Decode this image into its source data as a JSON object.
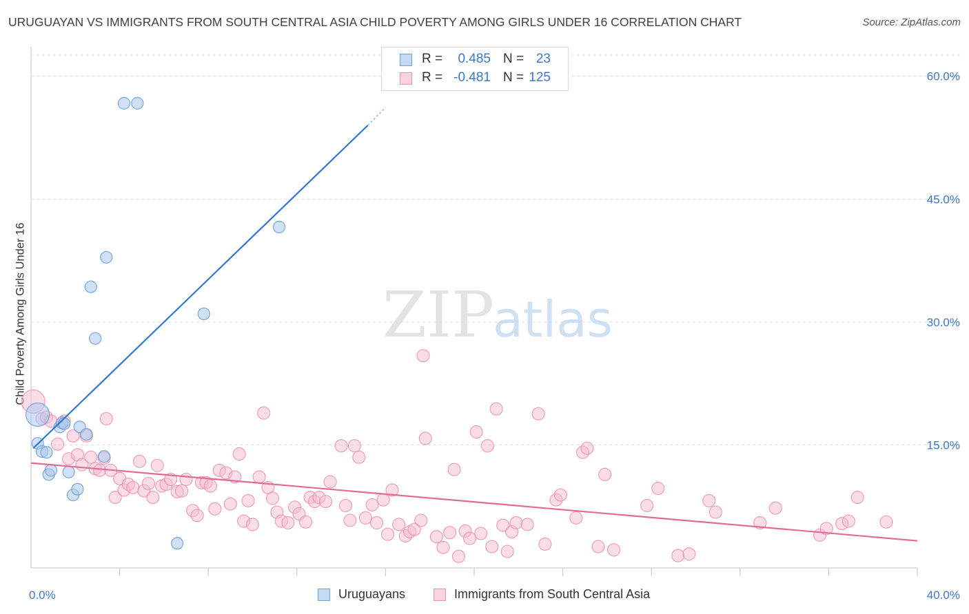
{
  "header": {
    "title": "URUGUAYAN VS IMMIGRANTS FROM SOUTH CENTRAL ASIA CHILD POVERTY AMONG GIRLS UNDER 16 CORRELATION CHART",
    "source": "Source: ZipAtlas.com"
  },
  "watermark": {
    "zip": "ZIP",
    "atlas": "atlas"
  },
  "legend_top": {
    "r_label": "R =",
    "n_label": "N =",
    "series": [
      {
        "r": "0.485",
        "n": "23"
      },
      {
        "r": "-0.481",
        "n": "125"
      }
    ]
  },
  "legend_bottom": {
    "items": [
      "Uruguayans",
      "Immigrants from South Central Asia"
    ]
  },
  "colors": {
    "blue_fill": "#a9c8ec",
    "blue_stroke": "#6b9fd8",
    "blue_line": "#2f77d0",
    "pink_fill": "#f6bcd0",
    "pink_stroke": "#ec8fb0",
    "pink_line": "#e46a96",
    "value_text": "#3a78c9"
  },
  "chart_data": {
    "type": "scatter",
    "title": "URUGUAYAN VS IMMIGRANTS FROM SOUTH CENTRAL ASIA CHILD POVERTY AMONG GIRLS UNDER 16 CORRELATION CHART",
    "xlabel": "",
    "ylabel": "Child Poverty Among Girls Under 16",
    "xlim": [
      0,
      40
    ],
    "ylim": [
      0,
      63
    ],
    "x_tick_labels": [
      "0.0%",
      "40.0%"
    ],
    "y_ticks": [
      15,
      30,
      45,
      60
    ],
    "y_tick_labels": [
      "15.0%",
      "30.0%",
      "45.0%",
      "60.0%"
    ],
    "grid": true,
    "series": [
      {
        "name": "Uruguayans",
        "r": 0.485,
        "n": 23,
        "trend": {
          "x": [
            0.1,
            15.2
          ],
          "y": [
            14.6,
            54.0
          ],
          "dashed_to": [
            16.0,
            56.2
          ]
        },
        "points": [
          {
            "x": 0.3,
            "y": 18.7,
            "big": true
          },
          {
            "x": 0.3,
            "y": 15.2
          },
          {
            "x": 0.5,
            "y": 14.2
          },
          {
            "x": 0.7,
            "y": 14.1
          },
          {
            "x": 0.8,
            "y": 11.4
          },
          {
            "x": 0.9,
            "y": 11.9
          },
          {
            "x": 1.3,
            "y": 17.2
          },
          {
            "x": 1.4,
            "y": 17.7
          },
          {
            "x": 1.5,
            "y": 17.6
          },
          {
            "x": 1.7,
            "y": 11.7
          },
          {
            "x": 1.9,
            "y": 8.9
          },
          {
            "x": 2.1,
            "y": 9.6
          },
          {
            "x": 2.2,
            "y": 17.2
          },
          {
            "x": 2.5,
            "y": 16.3
          },
          {
            "x": 2.7,
            "y": 34.3
          },
          {
            "x": 2.9,
            "y": 28.0
          },
          {
            "x": 3.3,
            "y": 13.6
          },
          {
            "x": 3.4,
            "y": 37.9
          },
          {
            "x": 4.2,
            "y": 56.7
          },
          {
            "x": 4.8,
            "y": 56.7
          },
          {
            "x": 6.6,
            "y": 3.0
          },
          {
            "x": 7.8,
            "y": 31.0
          },
          {
            "x": 11.2,
            "y": 41.6
          }
        ]
      },
      {
        "name": "Immigrants from South Central Asia",
        "r": -0.481,
        "n": 125,
        "trend": {
          "x": [
            0,
            40
          ],
          "y": [
            12.8,
            3.3
          ]
        },
        "points": [
          {
            "x": 0.1,
            "y": 20.3,
            "big": true
          },
          {
            "x": 0.5,
            "y": 18.2
          },
          {
            "x": 0.7,
            "y": 18.4
          },
          {
            "x": 0.9,
            "y": 17.9
          },
          {
            "x": 1.2,
            "y": 15.1
          },
          {
            "x": 1.5,
            "y": 17.9
          },
          {
            "x": 1.7,
            "y": 13.3
          },
          {
            "x": 1.9,
            "y": 16.1
          },
          {
            "x": 2.1,
            "y": 13.8
          },
          {
            "x": 2.3,
            "y": 12.6
          },
          {
            "x": 2.5,
            "y": 16.1
          },
          {
            "x": 2.7,
            "y": 13.5
          },
          {
            "x": 2.9,
            "y": 12.1
          },
          {
            "x": 3.1,
            "y": 11.9
          },
          {
            "x": 3.3,
            "y": 13.4
          },
          {
            "x": 3.4,
            "y": 18.2
          },
          {
            "x": 3.6,
            "y": 11.9
          },
          {
            "x": 3.8,
            "y": 8.6
          },
          {
            "x": 4.0,
            "y": 10.9
          },
          {
            "x": 4.2,
            "y": 9.5
          },
          {
            "x": 4.4,
            "y": 10.2
          },
          {
            "x": 4.6,
            "y": 9.8
          },
          {
            "x": 4.9,
            "y": 13.0
          },
          {
            "x": 5.1,
            "y": 9.4
          },
          {
            "x": 5.3,
            "y": 10.3
          },
          {
            "x": 5.5,
            "y": 8.6
          },
          {
            "x": 5.7,
            "y": 12.5
          },
          {
            "x": 5.9,
            "y": 10.0
          },
          {
            "x": 6.1,
            "y": 10.2
          },
          {
            "x": 6.3,
            "y": 10.8
          },
          {
            "x": 6.6,
            "y": 9.3
          },
          {
            "x": 6.8,
            "y": 9.4
          },
          {
            "x": 7.0,
            "y": 10.8
          },
          {
            "x": 7.3,
            "y": 7.0
          },
          {
            "x": 7.5,
            "y": 6.4
          },
          {
            "x": 7.7,
            "y": 10.4
          },
          {
            "x": 7.9,
            "y": 10.4
          },
          {
            "x": 8.1,
            "y": 10.0
          },
          {
            "x": 8.3,
            "y": 7.2
          },
          {
            "x": 8.5,
            "y": 11.9
          },
          {
            "x": 8.8,
            "y": 11.6
          },
          {
            "x": 9.0,
            "y": 7.8
          },
          {
            "x": 9.2,
            "y": 11.1
          },
          {
            "x": 9.4,
            "y": 13.9
          },
          {
            "x": 9.6,
            "y": 5.7
          },
          {
            "x": 9.8,
            "y": 8.2
          },
          {
            "x": 10.0,
            "y": 5.3
          },
          {
            "x": 10.3,
            "y": 11.1
          },
          {
            "x": 10.5,
            "y": 18.9
          },
          {
            "x": 10.7,
            "y": 9.8
          },
          {
            "x": 10.9,
            "y": 8.5
          },
          {
            "x": 11.1,
            "y": 6.8
          },
          {
            "x": 11.3,
            "y": 5.7
          },
          {
            "x": 11.6,
            "y": 5.5
          },
          {
            "x": 11.9,
            "y": 7.4
          },
          {
            "x": 12.1,
            "y": 6.6
          },
          {
            "x": 12.4,
            "y": 5.6
          },
          {
            "x": 12.6,
            "y": 8.6
          },
          {
            "x": 12.8,
            "y": 8.1
          },
          {
            "x": 13.0,
            "y": 8.6
          },
          {
            "x": 13.3,
            "y": 8.1
          },
          {
            "x": 13.5,
            "y": 10.5
          },
          {
            "x": 14.0,
            "y": 14.9
          },
          {
            "x": 14.2,
            "y": 7.6
          },
          {
            "x": 14.4,
            "y": 5.8
          },
          {
            "x": 14.6,
            "y": 14.9
          },
          {
            "x": 14.8,
            "y": 13.5
          },
          {
            "x": 15.1,
            "y": 6.1
          },
          {
            "x": 15.4,
            "y": 7.7
          },
          {
            "x": 15.6,
            "y": 5.5
          },
          {
            "x": 15.9,
            "y": 8.3
          },
          {
            "x": 16.1,
            "y": 4.1
          },
          {
            "x": 16.3,
            "y": 9.5
          },
          {
            "x": 16.6,
            "y": 5.3
          },
          {
            "x": 16.9,
            "y": 3.9
          },
          {
            "x": 17.1,
            "y": 4.4
          },
          {
            "x": 17.3,
            "y": 4.7
          },
          {
            "x": 17.6,
            "y": 5.8
          },
          {
            "x": 17.8,
            "y": 15.8
          },
          {
            "x": 17.7,
            "y": 25.9
          },
          {
            "x": 18.3,
            "y": 3.8
          },
          {
            "x": 18.6,
            "y": 2.5
          },
          {
            "x": 18.9,
            "y": 4.3
          },
          {
            "x": 19.1,
            "y": 12.0
          },
          {
            "x": 19.3,
            "y": 1.4
          },
          {
            "x": 19.6,
            "y": 4.5
          },
          {
            "x": 19.8,
            "y": 3.6
          },
          {
            "x": 20.1,
            "y": 16.6
          },
          {
            "x": 20.3,
            "y": 4.2
          },
          {
            "x": 20.6,
            "y": 14.9
          },
          {
            "x": 20.8,
            "y": 2.6
          },
          {
            "x": 21.0,
            "y": 19.4
          },
          {
            "x": 21.3,
            "y": 5.2
          },
          {
            "x": 21.5,
            "y": 2.0
          },
          {
            "x": 21.7,
            "y": 4.4
          },
          {
            "x": 21.9,
            "y": 5.5
          },
          {
            "x": 22.4,
            "y": 5.3
          },
          {
            "x": 22.9,
            "y": 18.8
          },
          {
            "x": 23.2,
            "y": 2.9
          },
          {
            "x": 23.7,
            "y": 8.3
          },
          {
            "x": 23.9,
            "y": 8.9
          },
          {
            "x": 24.6,
            "y": 6.1
          },
          {
            "x": 24.9,
            "y": 14.1
          },
          {
            "x": 25.1,
            "y": 14.6
          },
          {
            "x": 25.6,
            "y": 2.6
          },
          {
            "x": 25.9,
            "y": 11.4
          },
          {
            "x": 26.3,
            "y": 2.2
          },
          {
            "x": 27.8,
            "y": 7.6
          },
          {
            "x": 28.3,
            "y": 9.7
          },
          {
            "x": 29.2,
            "y": 1.5
          },
          {
            "x": 29.7,
            "y": 1.7
          },
          {
            "x": 30.6,
            "y": 8.2
          },
          {
            "x": 30.9,
            "y": 6.8
          },
          {
            "x": 32.9,
            "y": 5.5
          },
          {
            "x": 33.6,
            "y": 7.3
          },
          {
            "x": 35.6,
            "y": 4.0
          },
          {
            "x": 35.9,
            "y": 4.8
          },
          {
            "x": 36.6,
            "y": 5.4
          },
          {
            "x": 36.9,
            "y": 5.7
          },
          {
            "x": 37.3,
            "y": 8.6
          },
          {
            "x": 38.6,
            "y": 5.6
          }
        ]
      }
    ]
  }
}
